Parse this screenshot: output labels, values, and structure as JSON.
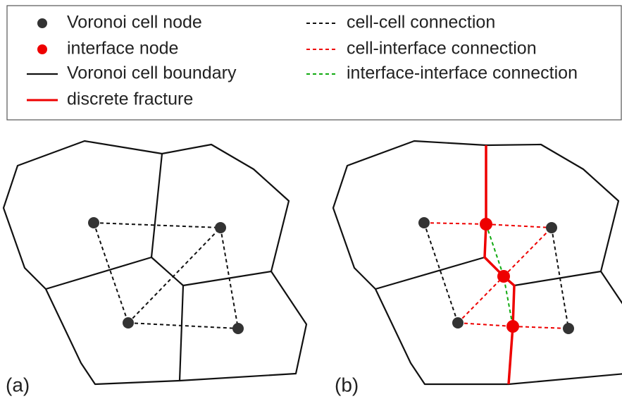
{
  "legend": {
    "items": [
      "Voronoi cell node",
      "interface node",
      "Voronoi cell boundary",
      "discrete fracture",
      "cell-cell connection",
      "cell-interface connection",
      "interface-interface connection"
    ]
  },
  "panels": [
    "(a)",
    "(b)"
  ]
}
